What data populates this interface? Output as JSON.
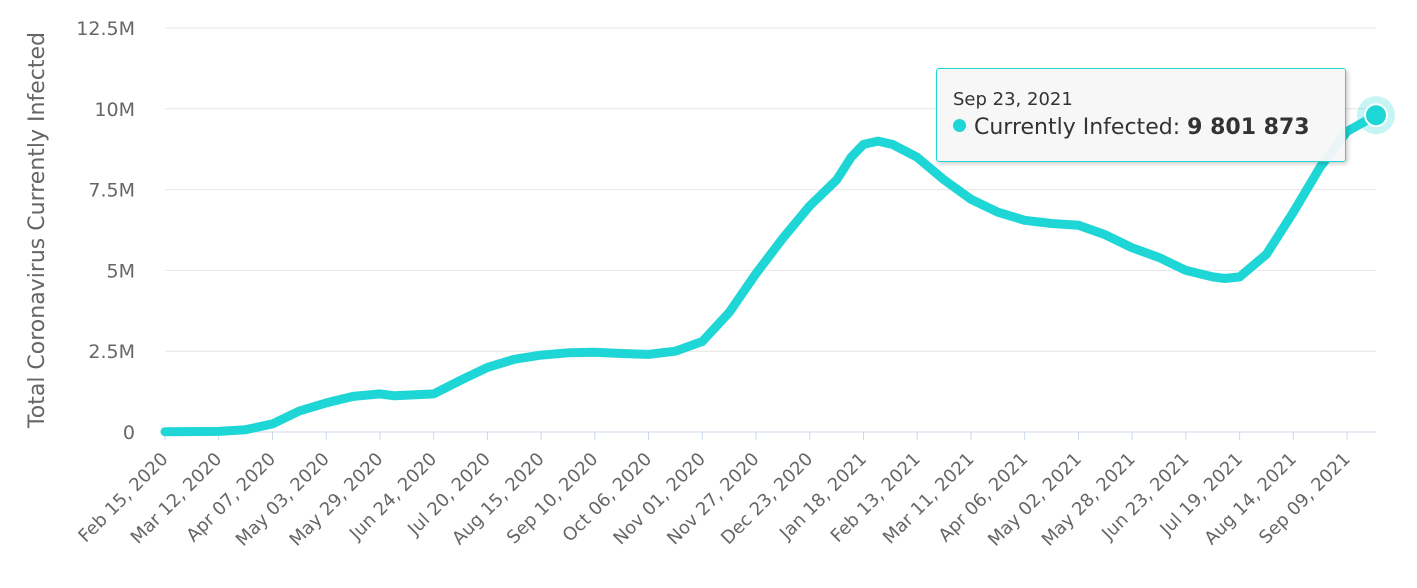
{
  "chart_data": {
    "type": "line",
    "title": "",
    "ylabel": "Total Coronavirus Currently Infected",
    "xlabel": "",
    "ylim": [
      0,
      12500000
    ],
    "yticks": [
      {
        "value": 0,
        "label": "0"
      },
      {
        "value": 2500000,
        "label": "2.5M"
      },
      {
        "value": 5000000,
        "label": "5M"
      },
      {
        "value": 7500000,
        "label": "7.5M"
      },
      {
        "value": 10000000,
        "label": "10M"
      },
      {
        "value": 12500000,
        "label": "12.5M"
      }
    ],
    "xlim": [
      "2020-02-15",
      "2021-09-23"
    ],
    "xticks": [
      {
        "date": "2020-02-15",
        "label": "Feb 15, 2020"
      },
      {
        "date": "2020-03-12",
        "label": "Mar 12, 2020"
      },
      {
        "date": "2020-04-07",
        "label": "Apr 07, 2020"
      },
      {
        "date": "2020-05-03",
        "label": "May 03, 2020"
      },
      {
        "date": "2020-05-29",
        "label": "May 29, 2020"
      },
      {
        "date": "2020-06-24",
        "label": "Jun 24, 2020"
      },
      {
        "date": "2020-07-20",
        "label": "Jul 20, 2020"
      },
      {
        "date": "2020-08-15",
        "label": "Aug 15, 2020"
      },
      {
        "date": "2020-09-10",
        "label": "Sep 10, 2020"
      },
      {
        "date": "2020-10-06",
        "label": "Oct 06, 2020"
      },
      {
        "date": "2020-11-01",
        "label": "Nov 01, 2020"
      },
      {
        "date": "2020-11-27",
        "label": "Nov 27, 2020"
      },
      {
        "date": "2020-12-23",
        "label": "Dec 23, 2020"
      },
      {
        "date": "2021-01-18",
        "label": "Jan 18, 2021"
      },
      {
        "date": "2021-02-13",
        "label": "Feb 13, 2021"
      },
      {
        "date": "2021-03-11",
        "label": "Mar 11, 2021"
      },
      {
        "date": "2021-04-06",
        "label": "Apr 06, 2021"
      },
      {
        "date": "2021-05-02",
        "label": "May 02, 2021"
      },
      {
        "date": "2021-05-28",
        "label": "May 28, 2021"
      },
      {
        "date": "2021-06-23",
        "label": "Jun 23, 2021"
      },
      {
        "date": "2021-07-19",
        "label": "Jul 19, 2021"
      },
      {
        "date": "2021-08-14",
        "label": "Aug 14, 2021"
      },
      {
        "date": "2021-09-09",
        "label": "Sep 09, 2021"
      }
    ],
    "grid": true,
    "legend": "none",
    "series": [
      {
        "name": "Currently Infected",
        "color": "#1fd6d6",
        "x": [
          "2020-02-15",
          "2020-03-12",
          "2020-03-25",
          "2020-04-07",
          "2020-04-20",
          "2020-05-03",
          "2020-05-16",
          "2020-05-29",
          "2020-06-05",
          "2020-06-24",
          "2020-07-07",
          "2020-07-20",
          "2020-08-02",
          "2020-08-15",
          "2020-08-28",
          "2020-09-10",
          "2020-09-23",
          "2020-10-06",
          "2020-10-19",
          "2020-11-01",
          "2020-11-14",
          "2020-11-27",
          "2020-12-10",
          "2020-12-23",
          "2021-01-05",
          "2021-01-12",
          "2021-01-18",
          "2021-01-25",
          "2021-02-01",
          "2021-02-13",
          "2021-02-26",
          "2021-03-11",
          "2021-03-24",
          "2021-04-06",
          "2021-04-19",
          "2021-05-02",
          "2021-05-15",
          "2021-05-28",
          "2021-06-10",
          "2021-06-23",
          "2021-07-06",
          "2021-07-12",
          "2021-07-19",
          "2021-08-01",
          "2021-08-14",
          "2021-08-27",
          "2021-09-09",
          "2021-09-23"
        ],
        "values": [
          10000,
          20000,
          70000,
          250000,
          650000,
          900000,
          1100000,
          1180000,
          1120000,
          1180000,
          1600000,
          2000000,
          2250000,
          2380000,
          2450000,
          2470000,
          2430000,
          2400000,
          2500000,
          2800000,
          3700000,
          4900000,
          6000000,
          7000000,
          7800000,
          8500000,
          8900000,
          9000000,
          8900000,
          8500000,
          7800000,
          7200000,
          6800000,
          6550000,
          6450000,
          6400000,
          6100000,
          5700000,
          5400000,
          5000000,
          4800000,
          4750000,
          4800000,
          5500000,
          6800000,
          8200000,
          9300000,
          9801873
        ]
      }
    ]
  },
  "tooltip": {
    "date": "Sep 23, 2021",
    "series_label": "Currently Infected:",
    "value_text": "9 801 873"
  }
}
